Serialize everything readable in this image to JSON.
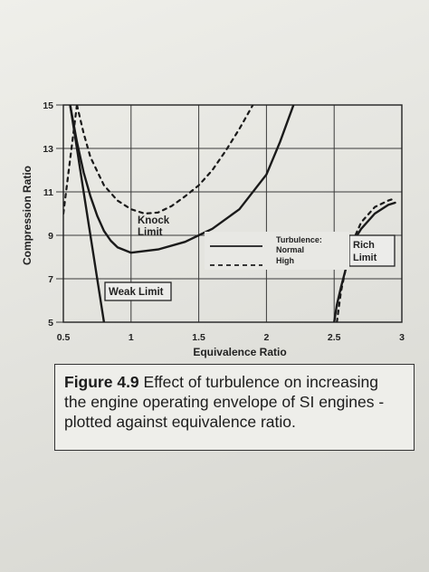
{
  "chart_data": {
    "type": "line",
    "xlabel": "Equivalence Ratio",
    "ylabel": "Compression Ratio",
    "xlim": [
      0.5,
      3
    ],
    "ylim": [
      5,
      15
    ],
    "xticks": [
      "0.5",
      "1",
      "1.5",
      "2",
      "2.5",
      "3"
    ],
    "yticks": [
      "5",
      "7",
      "9",
      "11",
      "13",
      "15"
    ],
    "grid": true,
    "legend_position": "right",
    "legend": {
      "title": "Turbulence:",
      "entries": [
        {
          "label": "Normal",
          "style": "solid"
        },
        {
          "label": "High",
          "style": "dashed"
        }
      ]
    },
    "annotations": {
      "knock": "Knock\nLimit",
      "weak": "Weak Limit",
      "rich": "Rich\nLimit"
    },
    "series": [
      {
        "style": "solid",
        "x": [
          0.55,
          0.6,
          0.65,
          0.7,
          0.75,
          0.8,
          0.85,
          0.9,
          1.0,
          1.2,
          1.4,
          1.6,
          1.8,
          2.0,
          2.1,
          2.2
        ],
        "y": [
          15.0,
          13.3,
          11.9,
          10.8,
          9.9,
          9.2,
          8.75,
          8.45,
          8.2,
          8.35,
          8.7,
          9.3,
          10.2,
          11.8,
          13.3,
          15.0
        ]
      },
      {
        "style": "dashed",
        "x": [
          0.6,
          0.65,
          0.7,
          0.8,
          0.9,
          1.0,
          1.1,
          1.2,
          1.3,
          1.4,
          1.5,
          1.6,
          1.7,
          1.8,
          1.9
        ],
        "y": [
          15.0,
          13.7,
          12.6,
          11.3,
          10.6,
          10.2,
          10.0,
          10.05,
          10.35,
          10.8,
          11.3,
          12.0,
          12.9,
          13.9,
          15.0
        ]
      },
      {
        "style": "solid",
        "x": [
          0.55,
          0.6,
          0.65,
          0.7,
          0.75,
          0.8
        ],
        "y": [
          15.0,
          13.0,
          11.0,
          9.0,
          7.0,
          5.0
        ]
      },
      {
        "style": "dashed",
        "x": [
          0.6,
          0.55,
          0.5,
          0.45,
          0.4
        ],
        "y": [
          15.0,
          12.5,
          10.0,
          7.5,
          5.0
        ]
      },
      {
        "style": "solid",
        "x": [
          2.5,
          2.52,
          2.55,
          2.6,
          2.65,
          2.7,
          2.8,
          2.9,
          2.95
        ],
        "y": [
          5.0,
          5.8,
          6.6,
          7.8,
          8.8,
          9.3,
          10.0,
          10.4,
          10.5
        ]
      },
      {
        "style": "dashed",
        "x": [
          2.52,
          2.55,
          2.6,
          2.65,
          2.7,
          2.8,
          2.9,
          2.95
        ],
        "y": [
          5.0,
          6.4,
          7.9,
          8.9,
          9.6,
          10.3,
          10.6,
          10.7
        ]
      }
    ]
  },
  "caption": {
    "label": "Figure 4.9",
    "text": " Effect of turbulence on increasing the engine operating envelope of SI engines - plotted against equivalence ratio."
  }
}
